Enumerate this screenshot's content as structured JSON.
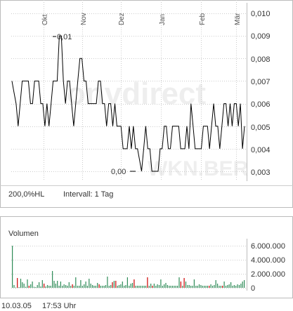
{
  "price_chart": {
    "months": [
      "Okt",
      "Nov",
      "Dez",
      "Jan",
      "Feb",
      "Mär"
    ],
    "y_ticks": [
      "0,010",
      "0,009",
      "0,008",
      "0,007",
      "0,006",
      "0,005",
      "0,004",
      "0,003"
    ],
    "max_label": "0,01",
    "min_label": "0,00",
    "footer_range": "200,0%HL",
    "footer_interval": "Intervall: 1 Tag",
    "watermark_text": "WKN.BER"
  },
  "volume_chart": {
    "title": "Volumen",
    "y_ticks": [
      "6.000.000",
      "4.000.000",
      "2.000.000",
      "0"
    ]
  },
  "footer": {
    "date": "10.03.05",
    "time": "17:53 Uhr"
  },
  "colors": {
    "line": "#000000",
    "volume_up": "#2e8b57",
    "volume_down": "#cc0000",
    "grid": "#cccccc"
  },
  "chart_data": [
    {
      "type": "line",
      "ylim": [
        0.003,
        0.01
      ],
      "values": [
        0.007,
        0.0065,
        0.006,
        0.005,
        0.006,
        0.007,
        0.007,
        0.007,
        0.007,
        0.006,
        0.006,
        0.007,
        0.007,
        0.007,
        0.006,
        0.006,
        0.005,
        0.006,
        0.005,
        0.006,
        0.007,
        0.007,
        0.007,
        0.009,
        0.009,
        0.007,
        0.006,
        0.007,
        0.007,
        0.006,
        0.005,
        0.006,
        0.007,
        0.008,
        0.008,
        0.007,
        0.007,
        0.006,
        0.006,
        0.006,
        0.006,
        0.006,
        0.007,
        0.007,
        0.006,
        0.006,
        0.005,
        0.006,
        0.006,
        0.005,
        0.006,
        0.005,
        0.005,
        0.005,
        0.004,
        0.004,
        0.004,
        0.005,
        0.004,
        0.005,
        0.004,
        0.004,
        0.0035,
        0.003,
        0.004,
        0.005,
        0.004,
        0.004,
        0.003,
        0.003,
        0.003,
        0.003,
        0.004,
        0.004,
        0.005,
        0.005,
        0.004,
        0.004,
        0.005,
        0.005,
        0.005,
        0.005,
        0.004,
        0.004,
        0.004,
        0.005,
        0.004,
        0.006,
        0.005,
        0.004,
        0.004,
        0.004,
        0.004,
        0.005,
        0.005,
        0.005,
        0.004,
        0.005,
        0.006,
        0.005,
        0.005,
        0.004,
        0.005,
        0.006,
        0.006,
        0.005,
        0.006,
        0.005,
        0.006,
        0.006,
        0.005,
        0.006,
        0.004,
        0.005
      ]
    },
    {
      "type": "bar",
      "ylim": [
        0,
        6500000
      ],
      "values": [
        6000000,
        400000,
        50000,
        1400000,
        100000,
        1300000,
        800000,
        600000,
        150000,
        1200000,
        300000,
        500000,
        900000,
        150000,
        100000,
        400000,
        800000,
        200000,
        1100000,
        600000,
        200000,
        400000,
        300000,
        300000,
        2400000,
        1000000,
        600000,
        1000000,
        300000,
        900000,
        300000,
        500000,
        400000,
        300000,
        800000,
        300000,
        500000,
        300000,
        1500000,
        300000,
        300000,
        1100000,
        300000,
        500000,
        900000,
        300000,
        1300000,
        600000,
        400000,
        300000,
        300000,
        700000,
        500000,
        300000,
        300000,
        300000,
        400000,
        1600000,
        300000,
        400000,
        800000,
        1000000,
        1000000,
        300000,
        400000,
        500000,
        900000,
        300000,
        400000,
        1500000,
        300000,
        600000,
        700000,
        1200000,
        300000,
        300000,
        300000,
        300000,
        300000,
        300000,
        300000,
        1500000,
        300000,
        600000,
        300000,
        600000,
        300000,
        500000,
        400000,
        1200000,
        300000,
        500000,
        700000,
        400000,
        300000,
        300000,
        300000,
        300000,
        300000,
        300000,
        1500000,
        900000,
        300000,
        1400000,
        900000,
        400000,
        400000,
        300000,
        300000,
        1200000,
        300000,
        300000,
        500000,
        400000,
        300000,
        300000,
        300000,
        300000,
        300000,
        500000,
        300000,
        400000,
        1100000,
        600000,
        300000,
        300000,
        300000,
        900000,
        300000,
        400000,
        500000,
        800000,
        300000,
        400000,
        300000,
        500000,
        400000,
        600000,
        900000,
        1100000
      ],
      "down": [
        3,
        10,
        19,
        36,
        52,
        60,
        62,
        73,
        81,
        84,
        101,
        103,
        118,
        126,
        140
      ]
    }
  ]
}
